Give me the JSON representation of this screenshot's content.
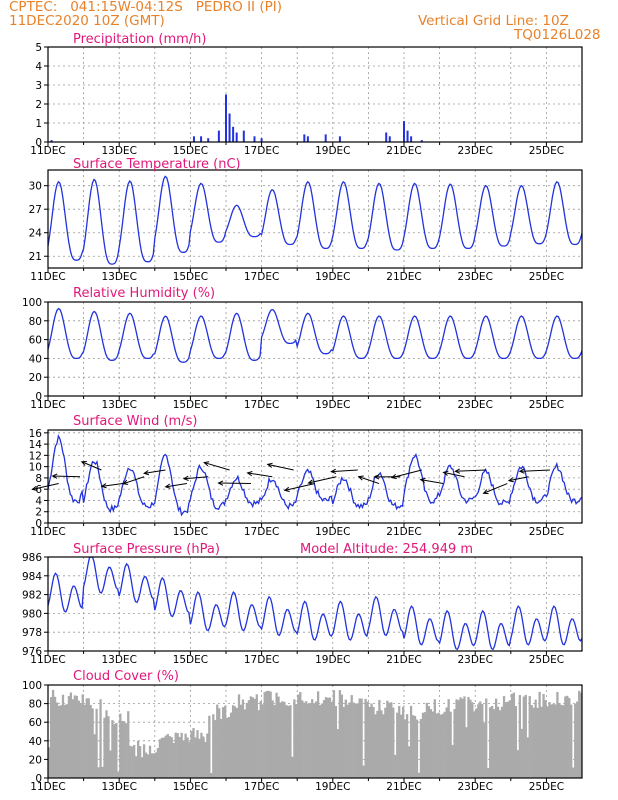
{
  "header": {
    "line1": "CPTEC:   041:15W-04:12S   PEDRO II (PI)",
    "line2": "11DEC2020 10Z (GMT)",
    "right1": "Vertical Grid Line: 10Z",
    "right2": "TQ0126L028"
  },
  "colors": {
    "header": "#e8822a",
    "title": "#e0187a",
    "series": "#2233dd",
    "cloud": "#aaaaaa"
  },
  "x_ticks": [
    "11DEC",
    "13DEC",
    "15DEC",
    "17DEC",
    "19DEC",
    "21DEC",
    "23DEC",
    "25DEC"
  ],
  "chart_data": [
    {
      "id": "precip",
      "type": "bar",
      "title": "Precipitation (mm/h)",
      "ylim": [
        0,
        5
      ],
      "yticks": [
        "0",
        "1",
        "2",
        "3",
        "4",
        "5"
      ],
      "values_by_day_offset": [
        [
          0.1,
          0.1
        ],
        [
          4.1,
          0.3
        ],
        [
          4.3,
          0.3
        ],
        [
          4.5,
          0.2
        ],
        [
          4.8,
          0.6
        ],
        [
          5.0,
          2.5
        ],
        [
          5.1,
          1.5
        ],
        [
          5.2,
          0.8
        ],
        [
          5.3,
          0.5
        ],
        [
          5.5,
          0.6
        ],
        [
          5.8,
          0.3
        ],
        [
          6.0,
          0.2
        ],
        [
          7.2,
          0.4
        ],
        [
          7.3,
          0.3
        ],
        [
          7.8,
          0.4
        ],
        [
          8.2,
          0.3
        ],
        [
          9.5,
          0.5
        ],
        [
          9.6,
          0.3
        ],
        [
          10.0,
          1.1
        ],
        [
          10.1,
          0.6
        ],
        [
          10.2,
          0.3
        ],
        [
          10.5,
          0.1
        ]
      ]
    },
    {
      "id": "temp",
      "type": "line",
      "title": "Surface Temperature (nC)",
      "ylim": [
        19.5,
        32
      ],
      "yticks": [
        "21",
        "24",
        "27",
        "30"
      ],
      "mins": [
        20.5,
        20.0,
        20.3,
        21.5,
        22.8,
        23.5,
        22.5,
        22.0,
        22.0,
        21.8,
        22.0,
        22.0,
        22.3,
        22.6,
        22.5
      ],
      "maxs": [
        30.5,
        30.8,
        30.6,
        31.2,
        30.3,
        27.5,
        29.5,
        30.5,
        30.5,
        30.3,
        30.3,
        30.2,
        30.0,
        30.0,
        30.5
      ]
    },
    {
      "id": "rh",
      "type": "line",
      "title": "Relative Humidity (%)",
      "ylim": [
        0,
        100
      ],
      "yticks": [
        "0",
        "20",
        "40",
        "60",
        "80",
        "100"
      ],
      "mins": [
        40,
        38,
        40,
        36,
        40,
        38,
        56,
        45,
        40,
        40,
        40,
        40,
        40,
        40,
        40
      ],
      "maxs": [
        93,
        90,
        88,
        85,
        85,
        88,
        92,
        88,
        85,
        85,
        85,
        85,
        85,
        85,
        85
      ]
    },
    {
      "id": "wind",
      "type": "line",
      "title": "Surface Wind (m/s)",
      "ylim": [
        0,
        16.5
      ],
      "yticks": [
        "0",
        "2",
        "4",
        "6",
        "8",
        "10",
        "12",
        "14",
        "16"
      ],
      "mins": [
        4,
        2.5,
        3,
        2,
        3,
        3.5,
        3,
        4,
        3,
        3,
        4,
        4,
        3.5,
        4,
        4
      ],
      "maxs": [
        15,
        11,
        10,
        12,
        10,
        8,
        8,
        9,
        8,
        9,
        12,
        10,
        9,
        10,
        10
      ]
    },
    {
      "id": "pres",
      "type": "line",
      "title": "Surface Pressure (hPa)",
      "annotation": "Model Altitude: 254.949  m",
      "ylim": [
        976,
        986
      ],
      "yticks": [
        "976",
        "978",
        "980",
        "982",
        "984",
        "986"
      ],
      "base": [
        982,
        984,
        983,
        981.5,
        980,
        980,
        979.5,
        979,
        979,
        979.5,
        978.5,
        978,
        978,
        978.5,
        978.5,
        978.5
      ]
    },
    {
      "id": "cloud",
      "type": "area",
      "title": "Cloud Cover (%)",
      "ylim": [
        0,
        100
      ],
      "yticks": [
        "0",
        "20",
        "40",
        "60",
        "80",
        "100"
      ],
      "levels": [
        95,
        90,
        75,
        40,
        50,
        55,
        80,
        90,
        95,
        95,
        95,
        90,
        85,
        80,
        85,
        88,
        90,
        92,
        93,
        95
      ]
    }
  ]
}
